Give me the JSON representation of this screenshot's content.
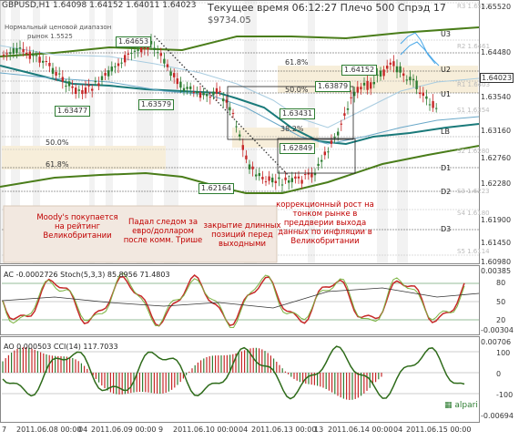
{
  "header": {
    "symbol": "GBPUSD,H1",
    "ohlc": "1.64098 1.64152 1.64011 1.64023",
    "server_time": "Текущее время 06:12:27 Плечо 500 Спрэд 17",
    "subline": "$9734.05",
    "legend1": "Нормальный ценовой диапазон",
    "legend2": "рынок  1.5525"
  },
  "price_labels": [
    "1.64653",
    "1.63477",
    "1.63579",
    "1.63431",
    "1.62849",
    "1.62164",
    "1.63879",
    "1.64152"
  ],
  "fib_levels": [
    "61.8%",
    "50.0%",
    "38.2%",
    "50.0%",
    "61.8%"
  ],
  "pivot_levels": [
    "U3",
    "U2",
    "U1",
    "LB",
    "D1",
    "D2",
    "D3"
  ],
  "right_axis": {
    "ticks": [
      "1.65520",
      "1.64480",
      "1.64023",
      "1.63540",
      "1.63160",
      "1.62760",
      "1.62280",
      "1.61900",
      "1.61450",
      "1.60980"
    ],
    "current": "1.64023",
    "faint_labels": [
      "R3 1.6552",
      "R2 1.6461",
      "R1 1.6403",
      "S1 1.6354",
      "S2 1.6280",
      "S3 1.6223",
      "S4 1.6180",
      "S5 1.6114"
    ]
  },
  "annotations": [
    "Moody's покупается на рейтинг Великобритании",
    "Падал следом за евро/долларом после комм. Трише",
    "закрытие длинных позиций перед выходными",
    "коррекционный рост на тонком рынке в преддверии выхода данных по инфляции в Великобритании"
  ],
  "indicator1": {
    "label": "AC -0.0002726  Stoch(5,3,3) 85.8956 71.4803",
    "ticks": [
      "0.00385",
      "80",
      "50",
      "20",
      "-0.00304"
    ]
  },
  "indicator2": {
    "label": "AO 0.000503  CCI(14) 117.7033",
    "ticks": [
      "0.00706",
      "100",
      "0",
      "-100",
      "-0.00694"
    ]
  },
  "time_axis": [
    "7",
    "2011.06.08 00:00",
    "04",
    "2011.06.09 00:00",
    "9",
    "2011.06.10 00:00",
    "04",
    "2011.06.13 00:00",
    "13",
    "2011.06.14 00:00",
    "04",
    "2011.06.15 00:00"
  ],
  "logo": "alpari",
  "colors": {
    "bull": "#2e7d32",
    "bear": "#c62828",
    "ma": "#1a7a7a",
    "channel": "#4a7d1a",
    "zone": "#f7eeda"
  }
}
